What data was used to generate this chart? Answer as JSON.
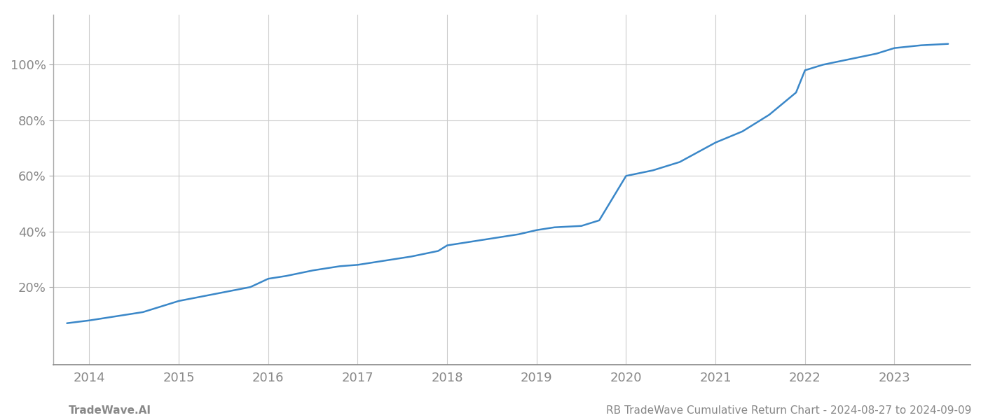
{
  "x_values": [
    2013.75,
    2014.0,
    2014.3,
    2014.6,
    2015.0,
    2015.4,
    2015.8,
    2016.0,
    2016.2,
    2016.5,
    2016.8,
    2017.0,
    2017.3,
    2017.6,
    2017.9,
    2018.0,
    2018.3,
    2018.6,
    2018.8,
    2019.0,
    2019.2,
    2019.5,
    2019.7,
    2020.0,
    2020.3,
    2020.6,
    2021.0,
    2021.3,
    2021.6,
    2021.9,
    2022.0,
    2022.2,
    2022.5,
    2022.8,
    2023.0,
    2023.3,
    2023.6
  ],
  "y_values": [
    7,
    8,
    9.5,
    11,
    15,
    17.5,
    20,
    23,
    24,
    26,
    27.5,
    28,
    29.5,
    31,
    33,
    35,
    36.5,
    38,
    39,
    40.5,
    41.5,
    42,
    44,
    60,
    62,
    65,
    72,
    76,
    82,
    90,
    98,
    100,
    102,
    104,
    106,
    107,
    107.5
  ],
  "line_color": "#3a87c8",
  "line_width": 1.8,
  "background_color": "#ffffff",
  "grid_color": "#cccccc",
  "x_ticks": [
    2014,
    2015,
    2016,
    2017,
    2018,
    2019,
    2020,
    2021,
    2022,
    2023
  ],
  "y_ticks": [
    20,
    40,
    60,
    80,
    100
  ],
  "y_tick_labels": [
    "20%",
    "40%",
    "60%",
    "80%",
    "100%"
  ],
  "xlim": [
    2013.6,
    2023.85
  ],
  "ylim": [
    -8,
    118
  ],
  "footer_left": "TradeWave.AI",
  "footer_right": "RB TradeWave Cumulative Return Chart - 2024-08-27 to 2024-09-09",
  "tick_label_color": "#888888",
  "footer_color": "#888888",
  "footer_fontsize": 11,
  "tick_fontsize": 13
}
